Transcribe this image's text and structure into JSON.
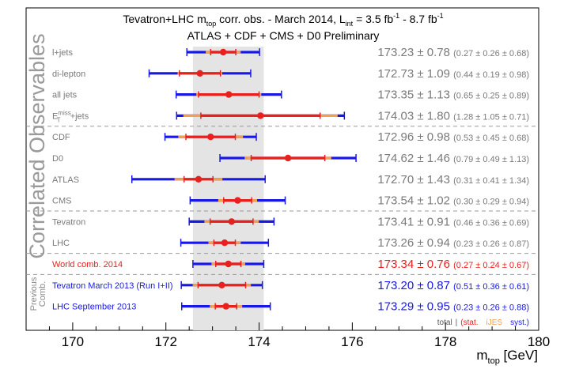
{
  "chart_data": {
    "type": "error-bar",
    "title": "Tevatron+LHC m_top corr. obs. - March 2014,  L_int = 3.5 fb^-1 - 8.7 fb^-1",
    "title_parts": {
      "pre": "Tevatron+LHC m",
      "top_sub": "top",
      "mid": " corr. obs. - March 2014,  L",
      "int_sub": "int",
      "lumi_a": " = 3.5 fb",
      "lumi_a_sup": "-1",
      "lumi_b": " - 8.7 fb",
      "lumi_b_sup": "-1"
    },
    "subtitle": "ATLAS + CDF + CMS + D0 Preliminary",
    "side_label": "Correlated Observables",
    "previous_label_line1": "Previous",
    "previous_label_line2": "Comb.",
    "xlabel_main": "m",
    "xlabel_sub": "top",
    "xlabel_unit": " [GeV]",
    "xlim": [
      169,
      180
    ],
    "xticks": [
      170,
      172,
      174,
      176,
      178,
      180
    ],
    "band": [
      172.58,
      174.1
    ],
    "colors": {
      "total": "#1818e6",
      "stat": "#e8211e",
      "ijes": "#f0a050",
      "grid": "#999999",
      "band": "#e4e4e4",
      "gray_text": "#7a7a7a"
    },
    "legend": {
      "total": "total",
      "sep": "|",
      "open": "(",
      "stat": "stat.",
      "ijes": "iJES",
      "syst": "syst.",
      "close": ")"
    },
    "rows": [
      {
        "label": "l+jets",
        "value": 173.23,
        "total": 0.78,
        "stat": 0.27,
        "ijes": 0.26,
        "syst": 0.68,
        "main": "173.23 ± 0.78",
        "detail": "(0.27 ± 0.26 ± 0.68)",
        "style": "gray"
      },
      {
        "label": "di-lepton",
        "value": 172.73,
        "total": 1.09,
        "stat": 0.44,
        "ijes": 0.19,
        "syst": 0.98,
        "main": "172.73 ± 1.09",
        "detail": "(0.44 ± 0.19 ± 0.98)",
        "style": "gray"
      },
      {
        "label": "all jets",
        "value": 173.35,
        "total": 1.13,
        "stat": 0.65,
        "ijes": 0.25,
        "syst": 0.89,
        "main": "173.35 ± 1.13",
        "detail": "(0.65 ± 0.25 ± 0.89)",
        "style": "gray"
      },
      {
        "label": "+jets",
        "label_prefix": "E",
        "label_sup": "miss",
        "label_sub": "T",
        "value": 174.03,
        "total": 1.8,
        "stat": 1.28,
        "ijes": 1.05,
        "syst": 0.71,
        "main": "174.03 ± 1.80",
        "detail": "(1.28 ± 1.05 ± 0.71)",
        "style": "gray"
      },
      {
        "label": "CDF",
        "value": 172.96,
        "total": 0.98,
        "stat": 0.53,
        "ijes": 0.45,
        "syst": 0.68,
        "main": "172.96 ± 0.98",
        "detail": "(0.53 ± 0.45 ± 0.68)",
        "style": "gray"
      },
      {
        "label": "D0",
        "value": 174.62,
        "total": 1.46,
        "stat": 0.79,
        "ijes": 0.49,
        "syst": 1.13,
        "main": "174.62 ± 1.46",
        "detail": "(0.79 ± 0.49 ± 1.13)",
        "style": "gray"
      },
      {
        "label": "ATLAS",
        "value": 172.7,
        "total": 1.43,
        "stat": 0.31,
        "ijes": 0.41,
        "syst": 1.34,
        "main": "172.70 ± 1.43",
        "detail": "(0.31 ± 0.41 ± 1.34)",
        "style": "gray"
      },
      {
        "label": "CMS",
        "value": 173.54,
        "total": 1.02,
        "stat": 0.3,
        "ijes": 0.29,
        "syst": 0.94,
        "main": "173.54 ± 1.02",
        "detail": "(0.30 ± 0.29 ± 0.94)",
        "style": "gray"
      },
      {
        "label": "Tevatron",
        "value": 173.41,
        "total": 0.91,
        "stat": 0.46,
        "ijes": 0.36,
        "syst": 0.69,
        "main": "173.41 ± 0.91",
        "detail": "(0.46 ± 0.36 ± 0.69)",
        "style": "gray"
      },
      {
        "label": "LHC",
        "value": 173.26,
        "total": 0.94,
        "stat": 0.23,
        "ijes": 0.26,
        "syst": 0.87,
        "main": "173.26 ± 0.94",
        "detail": "(0.23 ± 0.26 ± 0.87)",
        "style": "gray"
      },
      {
        "label": "World comb. 2014",
        "value": 173.34,
        "total": 0.76,
        "stat": 0.27,
        "ijes": 0.24,
        "syst": 0.67,
        "main": "173.34 ± 0.76",
        "detail": "(0.27 ± 0.24 ± 0.67)",
        "style": "red"
      },
      {
        "label": "Tevatron March 2013 (Run I+II)",
        "value": 173.2,
        "total": 0.87,
        "stat": 0.51,
        "ijes": 0.36,
        "syst": 0.61,
        "main": "173.20 ± 0.87",
        "detail": "(0.51 ± 0.36 ± 0.61)",
        "style": "blue"
      },
      {
        "label": "LHC September 2013",
        "value": 173.29,
        "total": 0.95,
        "stat": 0.23,
        "ijes": 0.26,
        "syst": 0.88,
        "main": "173.29 ± 0.95",
        "detail": "(0.23 ± 0.26 ± 0.88)",
        "style": "blue"
      }
    ]
  }
}
